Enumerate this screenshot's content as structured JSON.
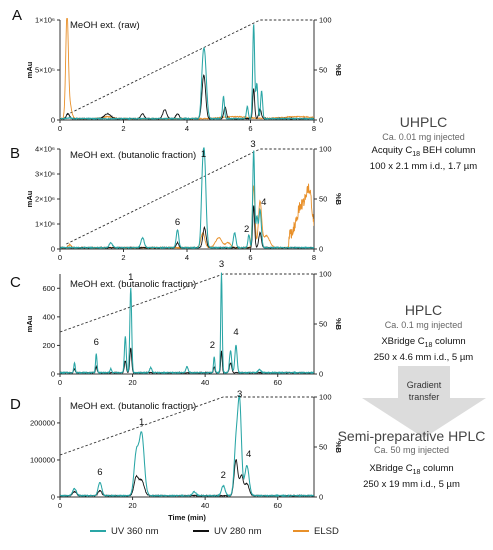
{
  "figure_labels": {
    "x_axis_title": "Time (min)",
    "legend": [
      {
        "label": "UV 360 nm",
        "color": "#2aa6a6"
      },
      {
        "label": "UV 280 nm",
        "color": "#111111"
      },
      {
        "label": "ELSD",
        "color": "#e8902a"
      }
    ],
    "side": {
      "uhplc": {
        "title": "UHPLC",
        "amount": "Ca. 0.01 mg injected",
        "column_a": "Acquity C",
        "column_sub": "18",
        "column_b": " BEH column",
        "dims": "100 x 2.1 mm i.d., 1.7 µm"
      },
      "hplc": {
        "title": "HPLC",
        "amount": "Ca. 0.1 mg injected",
        "column_a": "XBridge C",
        "column_sub": "18",
        "column_b": " column",
        "dims": "250 x 4.6 mm i.d., 5 µm"
      },
      "transfer": {
        "line1": "Gradient",
        "line2": "transfer"
      },
      "semi": {
        "title": "Semi-preparative HPLC",
        "amount": "Ca. 50 mg injected",
        "column_a": "XBridge C",
        "column_sub": "18",
        "column_b": " column",
        "dims": "250 x 19 mm i.d., 5 µm"
      }
    }
  },
  "chart_data": [
    {
      "type": "line",
      "panel_label": "A",
      "title": "MeOH ext. (raw)",
      "ylabel_left": "mAu",
      "ylabel_right": "%B",
      "xlim": [
        0,
        8
      ],
      "xticks": [
        "0",
        "2",
        "4",
        "6",
        "8"
      ],
      "ylim_left": [
        0,
        1000000
      ],
      "yticks_left": [
        "0",
        "5×10⁵",
        "1×10⁶"
      ],
      "ylim_right": [
        0,
        100
      ],
      "yticks_right": [
        "0",
        "50",
        "100"
      ],
      "gradient": {
        "x": [
          0.2,
          6.3,
          8
        ],
        "y": [
          5,
          100,
          100
        ]
      },
      "series": [
        {
          "name": "UV 360 nm",
          "peaks": [
            [
              0.3,
              0.06,
              0.01
            ],
            [
              4.48,
              0.04,
              0.2
            ],
            [
              4.55,
              0.06,
              0.65
            ],
            [
              5.15,
              0.03,
              0.22
            ],
            [
              5.9,
              0.03,
              0.12
            ],
            [
              6.1,
              0.03,
              0.95
            ],
            [
              6.2,
              0.03,
              0.35
            ],
            [
              6.35,
              0.03,
              0.28
            ]
          ]
        },
        {
          "name": "UV 280 nm",
          "peaks": [
            [
              0.25,
              0.05,
              0.05
            ],
            [
              1.5,
              0.1,
              0.05
            ],
            [
              2.6,
              0.05,
              0.05
            ],
            [
              3.3,
              0.06,
              0.09
            ],
            [
              3.7,
              0.05,
              0.05
            ],
            [
              4.5,
              0.05,
              0.21
            ],
            [
              4.55,
              0.05,
              0.28
            ],
            [
              5.2,
              0.04,
              0.12
            ],
            [
              6.1,
              0.03,
              0.3
            ],
            [
              6.3,
              0.04,
              0.1
            ]
          ]
        },
        {
          "name": "ELSD",
          "peaks": [
            [
              0.22,
              0.04,
              1.0
            ],
            [
              0.3,
              0.06,
              0.15
            ],
            [
              1.5,
              0.15,
              0.02
            ],
            [
              5.5,
              0.4,
              0.02
            ],
            [
              7.5,
              0.5,
              0.02
            ]
          ]
        }
      ],
      "peak_labels": []
    },
    {
      "type": "line",
      "panel_label": "B",
      "title": "MeOH ext. (butanolic fraction)",
      "ylabel_left": "mAu",
      "ylabel_right": "%B",
      "xlim": [
        0,
        8
      ],
      "xticks": [
        "0",
        "2",
        "4",
        "6",
        "8"
      ],
      "ylim_left": [
        0,
        4000000
      ],
      "yticks_left": [
        "0",
        "1×10⁶",
        "2×10⁶",
        "3×10⁶",
        "4×10⁶"
      ],
      "ylim_right": [
        0,
        100
      ],
      "yticks_right": [
        "0",
        "50",
        "100"
      ],
      "gradient": {
        "x": [
          0.2,
          6.3,
          8
        ],
        "y": [
          5,
          100,
          100
        ]
      },
      "series": [
        {
          "name": "UV 360 nm",
          "peaks": [
            [
              1.6,
              0.05,
              0.05
            ],
            [
              2.6,
              0.05,
              0.1
            ],
            [
              3.7,
              0.04,
              0.18
            ],
            [
              4.48,
              0.04,
              0.45
            ],
            [
              4.55,
              0.05,
              0.86
            ],
            [
              5.5,
              0.04,
              0.15
            ],
            [
              5.95,
              0.03,
              0.13
            ],
            [
              6.1,
              0.03,
              0.97
            ],
            [
              6.2,
              0.03,
              0.3
            ],
            [
              6.3,
              0.04,
              0.38
            ]
          ]
        },
        {
          "name": "UV 280 nm",
          "peaks": [
            [
              3.7,
              0.04,
              0.05
            ],
            [
              4.55,
              0.05,
              0.2
            ],
            [
              6.1,
              0.03,
              0.42
            ],
            [
              6.3,
              0.04,
              0.15
            ]
          ]
        },
        {
          "name": "ELSD",
          "peaks": [
            [
              0.3,
              0.05,
              0.03
            ],
            [
              4.5,
              0.06,
              0.15
            ],
            [
              5.0,
              0.1,
              0.1
            ],
            [
              5.3,
              0.08,
              0.05
            ],
            [
              6.1,
              0.04,
              0.62
            ],
            [
              6.3,
              0.05,
              0.45
            ],
            [
              6.5,
              0.1,
              0.12
            ],
            [
              7.6,
              0.15,
              0.3
            ],
            [
              7.85,
              0.1,
              0.4
            ]
          ]
        }
      ],
      "peak_labels": [
        {
          "text": "1",
          "x": 4.52,
          "y": 0.9
        },
        {
          "text": "3",
          "x": 6.08,
          "y": 1.0
        },
        {
          "text": "6",
          "x": 3.7,
          "y": 0.22
        },
        {
          "text": "2",
          "x": 5.88,
          "y": 0.15
        },
        {
          "text": "4",
          "x": 6.42,
          "y": 0.42
        }
      ]
    },
    {
      "type": "line",
      "panel_label": "C",
      "title": "MeOH ext. (butanolic fraction)",
      "ylabel_left": "mAu",
      "ylabel_right": "%B",
      "xlim": [
        0,
        70
      ],
      "xticks": [
        "0",
        "20",
        "40",
        "60"
      ],
      "ylim_left": [
        0,
        700
      ],
      "yticks_left": [
        "0",
        "200",
        "400",
        "600"
      ],
      "ylim_right": [
        0,
        100
      ],
      "yticks_right": [
        "0",
        "50",
        "100"
      ],
      "gradient": {
        "x": [
          0,
          45,
          70
        ],
        "y": [
          42,
          100,
          100
        ]
      },
      "series": [
        {
          "name": "UV 360 nm",
          "peaks": [
            [
              4,
              0.2,
              0.1
            ],
            [
              10,
              0.2,
              0.19
            ],
            [
              14,
              0.2,
              0.04
            ],
            [
              18,
              0.25,
              0.36
            ],
            [
              19.5,
              0.25,
              0.85
            ],
            [
              25,
              0.3,
              0.05
            ],
            [
              35,
              0.3,
              0.06
            ],
            [
              42.5,
              0.2,
              0.16
            ],
            [
              44.5,
              0.2,
              1.0
            ],
            [
              47,
              0.3,
              0.22
            ],
            [
              48.5,
              0.3,
              0.28
            ],
            [
              55,
              0.4,
              0.03
            ]
          ]
        },
        {
          "name": "UV 280 nm",
          "peaks": [
            [
              4,
              0.2,
              0.04
            ],
            [
              10,
              0.2,
              0.06
            ],
            [
              18,
              0.25,
              0.12
            ],
            [
              19.5,
              0.25,
              0.25
            ],
            [
              42.5,
              0.2,
              0.06
            ],
            [
              44.5,
              0.2,
              0.22
            ],
            [
              47,
              0.3,
              0.1
            ]
          ]
        }
      ],
      "peak_labels": [
        {
          "text": "1",
          "x": 19.5,
          "y": 0.92
        },
        {
          "text": "3",
          "x": 44.5,
          "y": 1.05
        },
        {
          "text": "6",
          "x": 10,
          "y": 0.27
        },
        {
          "text": "2",
          "x": 42,
          "y": 0.24
        },
        {
          "text": "4",
          "x": 48.5,
          "y": 0.37
        }
      ]
    },
    {
      "type": "line",
      "panel_label": "D",
      "title": "MeOH ext. (butanolic fraction)",
      "ylabel_left": "",
      "ylabel_right": "%B",
      "xlim": [
        0,
        70
      ],
      "xticks": [
        "0",
        "20",
        "40",
        "60"
      ],
      "ylim_left": [
        0,
        270000
      ],
      "yticks_left": [
        "0",
        "100000",
        "200000"
      ],
      "ylim_right": [
        0,
        100
      ],
      "yticks_right": [
        "0",
        "50",
        "100"
      ],
      "gradient": {
        "x": [
          0,
          45,
          70
        ],
        "y": [
          42,
          100,
          100
        ]
      },
      "series": [
        {
          "name": "UV 360 nm",
          "peaks": [
            [
              4,
              0.5,
              0.07
            ],
            [
              11,
              0.5,
              0.13
            ],
            [
              21,
              0.6,
              0.4
            ],
            [
              22.5,
              0.7,
              0.62
            ],
            [
              37,
              0.5,
              0.04
            ],
            [
              45,
              0.5,
              0.1
            ],
            [
              48.5,
              0.5,
              0.5
            ],
            [
              49.5,
              0.5,
              0.92
            ],
            [
              51.5,
              0.6,
              0.3
            ]
          ]
        },
        {
          "name": "UV 280 nm",
          "peaks": [
            [
              4,
              0.5,
              0.04
            ],
            [
              11,
              0.5,
              0.05
            ],
            [
              21,
              0.6,
              0.18
            ],
            [
              22.5,
              0.7,
              0.15
            ],
            [
              48.5,
              0.5,
              0.36
            ],
            [
              50,
              0.5,
              0.2
            ],
            [
              51.5,
              0.6,
              0.12
            ]
          ]
        }
      ],
      "peak_labels": [
        {
          "text": "1",
          "x": 22.5,
          "y": 0.7
        },
        {
          "text": "3",
          "x": 49.5,
          "y": 0.98
        },
        {
          "text": "6",
          "x": 11,
          "y": 0.2
        },
        {
          "text": "2",
          "x": 45,
          "y": 0.17
        },
        {
          "text": "4",
          "x": 52,
          "y": 0.38
        }
      ]
    }
  ]
}
